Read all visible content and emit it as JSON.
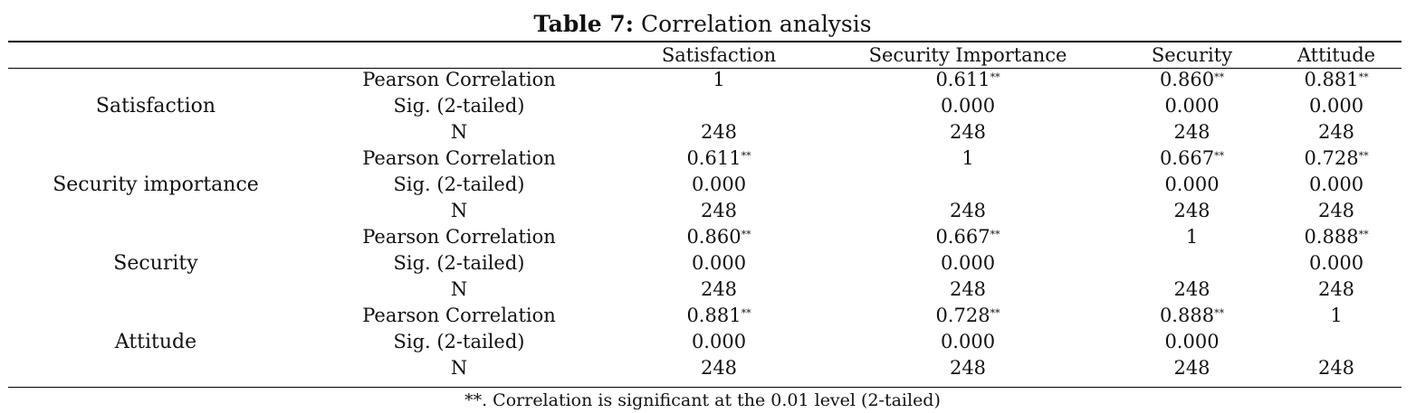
{
  "caption": {
    "label": "Table 7:",
    "text": "Correlation analysis"
  },
  "columns": [
    "Satisfaction",
    "Security Importance",
    "Security",
    "Attitude"
  ],
  "stat_labels": {
    "pearson": "Pearson Correlation",
    "sig": "Sig. (2-tailed)",
    "n": "N"
  },
  "significance_mark": "**",
  "groups": [
    {
      "variable": "Satisfaction",
      "pearson": [
        {
          "v": "1",
          "star": false
        },
        {
          "v": "0.611",
          "star": true
        },
        {
          "v": "0.860",
          "star": true
        },
        {
          "v": "0.881",
          "star": true
        }
      ],
      "sig": [
        "",
        "0.000",
        "0.000",
        "0.000"
      ],
      "n": [
        "248",
        "248",
        "248",
        "248"
      ]
    },
    {
      "variable": "Security importance",
      "pearson": [
        {
          "v": "0.611",
          "star": true
        },
        {
          "v": "1",
          "star": false
        },
        {
          "v": "0.667",
          "star": true
        },
        {
          "v": "0.728",
          "star": true
        }
      ],
      "sig": [
        "0.000",
        "",
        "0.000",
        "0.000"
      ],
      "n": [
        "248",
        "248",
        "248",
        "248"
      ]
    },
    {
      "variable": "Security",
      "pearson": [
        {
          "v": "0.860",
          "star": true
        },
        {
          "v": "0.667",
          "star": true
        },
        {
          "v": "1",
          "star": false
        },
        {
          "v": "0.888",
          "star": true
        }
      ],
      "sig": [
        "0.000",
        "0.000",
        "",
        "0.000"
      ],
      "n": [
        "248",
        "248",
        "248",
        "248"
      ]
    },
    {
      "variable": "Attitude",
      "pearson": [
        {
          "v": "0.881",
          "star": true
        },
        {
          "v": "0.728",
          "star": true
        },
        {
          "v": "0.888",
          "star": true
        },
        {
          "v": "1",
          "star": false
        }
      ],
      "sig": [
        "0.000",
        "0.000",
        "0.000",
        ""
      ],
      "n": [
        "248",
        "248",
        "248",
        "248"
      ]
    }
  ],
  "footnote": "**. Correlation is significant at the 0.01 level (2-tailed)"
}
